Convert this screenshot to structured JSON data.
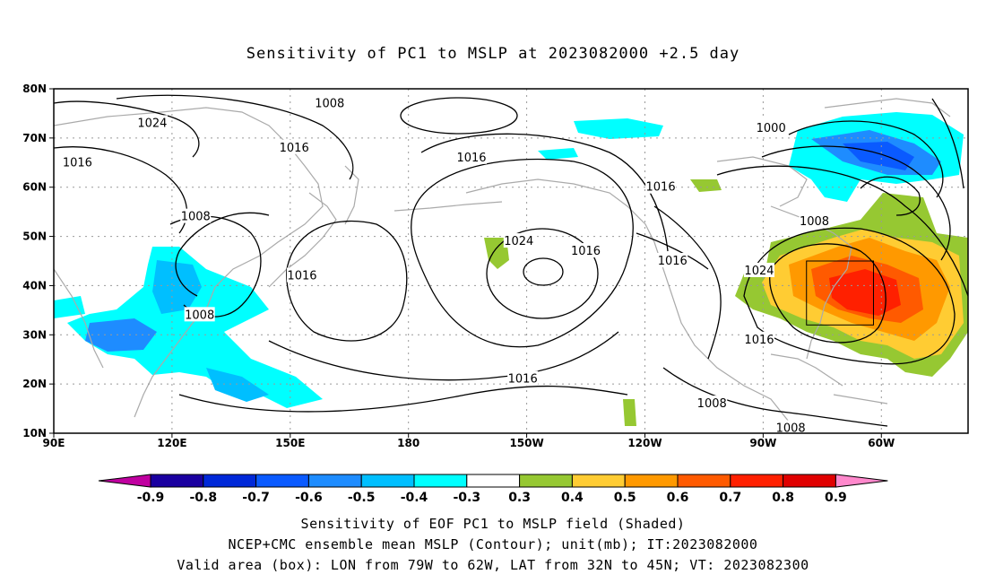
{
  "title": "Sensitivity of PC1 to MSLP at 2023082000 +2.5 day",
  "lat_ticks": [
    "80N",
    "70N",
    "60N",
    "50N",
    "40N",
    "30N",
    "20N",
    "10N"
  ],
  "lon_ticks": [
    "90E",
    "120E",
    "150E",
    "180",
    "150W",
    "120W",
    "90W",
    "60W"
  ],
  "colorbar": {
    "labels": [
      "-0.9",
      "-0.8",
      "-0.7",
      "-0.6",
      "-0.5",
      "-0.4",
      "-0.3",
      "0.3",
      "0.4",
      "0.5",
      "0.6",
      "0.7",
      "0.8",
      "0.9"
    ],
    "colors": [
      "#1a00a0",
      "#0028d8",
      "#0a5aff",
      "#1e8cff",
      "#00bfff",
      "#00ffff",
      "#ffffff",
      "#96c832",
      "#ffcc33",
      "#ff9900",
      "#ff5a00",
      "#ff2000",
      "#e00000"
    ],
    "under_color": "#c000a0",
    "over_color": "#ff88cc"
  },
  "contour_labels": [
    {
      "text": "1008",
      "lon": 160,
      "lat": 77
    },
    {
      "text": "1024",
      "lon": 115,
      "lat": 73
    },
    {
      "text": "1016",
      "lon": 96,
      "lat": 65
    },
    {
      "text": "1016",
      "lon": 151,
      "lat": 68
    },
    {
      "text": "1008",
      "lon": 126,
      "lat": 54
    },
    {
      "text": "1016",
      "lon": 153,
      "lat": 42
    },
    {
      "text": "1008",
      "lon": 127,
      "lat": 34
    },
    {
      "text": "1016",
      "lon": 196,
      "lat": 66
    },
    {
      "text": "1024",
      "lon": 208,
      "lat": 49
    },
    {
      "text": "1016",
      "lon": 225,
      "lat": 47
    },
    {
      "text": "1016",
      "lon": 244,
      "lat": 60
    },
    {
      "text": "1016",
      "lon": 247,
      "lat": 45
    },
    {
      "text": "1016",
      "lon": 209,
      "lat": 21
    },
    {
      "text": "1000",
      "lon": 272,
      "lat": 72
    },
    {
      "text": "1008",
      "lon": 283,
      "lat": 53
    },
    {
      "text": "1024",
      "lon": 269,
      "lat": 43
    },
    {
      "text": "1016",
      "lon": 269,
      "lat": 29
    },
    {
      "text": "1008",
      "lon": 257,
      "lat": 16
    },
    {
      "text": "1008",
      "lon": 277,
      "lat": 11
    }
  ],
  "footer": {
    "line1": "Sensitivity of EOF PC1 to MSLP field (Shaded)",
    "line2": "NCEP+CMC ensemble mean MSLP (Contour); unit(mb); IT:2023082000",
    "line3": "Valid area (box): LON from 79W to 62W, LAT from 32N to 45N; VT: 2023082300"
  },
  "valid_box": {
    "lon_min": 281,
    "lon_max": 298,
    "lat_min": 32,
    "lat_max": 45
  },
  "map_extent": {
    "lon_min": 90,
    "lon_max": 322,
    "lat_min": 10,
    "lat_max": 80
  }
}
